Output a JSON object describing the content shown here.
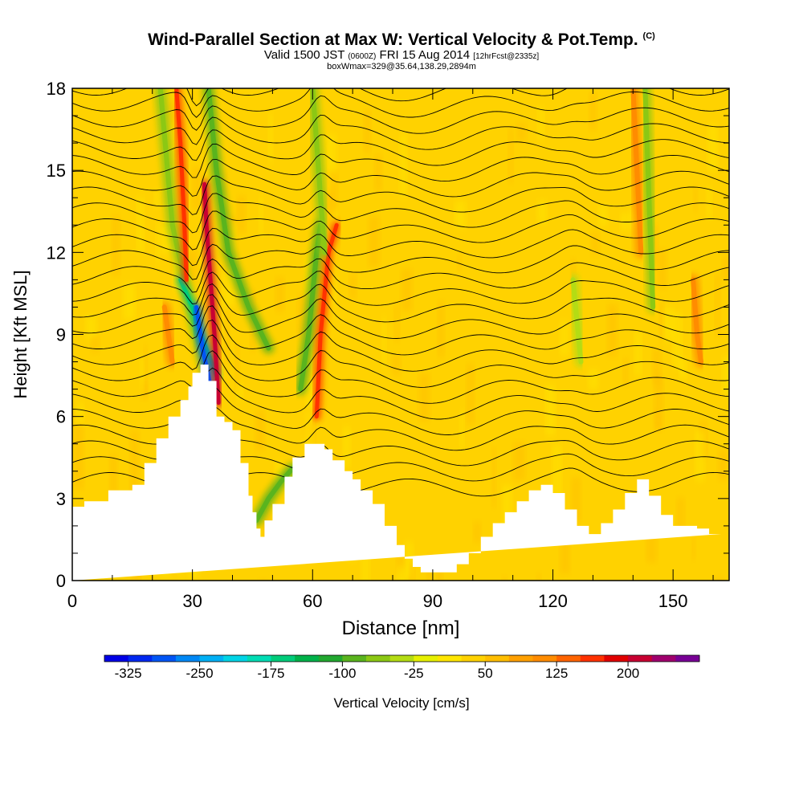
{
  "title": {
    "main": "Wind-Parallel Section at Max W: Vertical Velocity & Pot.Temp.",
    "mark": "(C)"
  },
  "subtitle": {
    "valid": "Valid 1500 JST",
    "utc": "(0600Z)",
    "date": "FRI 15 Aug 2014",
    "fcst": "[12hrFcst@2335z]"
  },
  "subtitle2": "boxWmax=329@35.64,138.29,2894m",
  "chart_data": {
    "type": "heatmap",
    "xlabel": "Distance [nm]",
    "ylabel": "Height [Kft MSL]",
    "xlim": [
      0,
      164
    ],
    "ylim": [
      0,
      18
    ],
    "xticks": [
      0,
      30,
      60,
      90,
      120,
      150
    ],
    "yticks": [
      0,
      3,
      6,
      9,
      12,
      15,
      18
    ],
    "background_w_cm_s": 25,
    "terrain": {
      "x": [
        0,
        3,
        3,
        9,
        9,
        15,
        15,
        18,
        18,
        21,
        21,
        24,
        24,
        27,
        27,
        29,
        29,
        30,
        30,
        32,
        32,
        34,
        34,
        36,
        36,
        38,
        38,
        40,
        40,
        42,
        42,
        44,
        44,
        45,
        45,
        46,
        46,
        47,
        47,
        48,
        48,
        50,
        50,
        53,
        53,
        55,
        55,
        58,
        58,
        61,
        61,
        63,
        63,
        65,
        65,
        68,
        68,
        70,
        70,
        72,
        72,
        75,
        75,
        78,
        78,
        81,
        81,
        83,
        83,
        85,
        85,
        87,
        87,
        90,
        90,
        96,
        96,
        99,
        99,
        102,
        102,
        105,
        105,
        108,
        108,
        111,
        111,
        114,
        114,
        117,
        117,
        120,
        120,
        123,
        123,
        126,
        126,
        129,
        129,
        132,
        132,
        135,
        135,
        138,
        138,
        141,
        141,
        144,
        144,
        147,
        147,
        150,
        150,
        153,
        153,
        156,
        156,
        159,
        159,
        162,
        162,
        164
      ],
      "h": [
        2.7,
        2.7,
        2.9,
        2.9,
        3.3,
        3.3,
        3.5,
        3.5,
        4.3,
        4.3,
        5.2,
        5.2,
        6,
        6,
        6.6,
        6.6,
        7.1,
        7.1,
        7.6,
        7.6,
        7.9,
        7.9,
        7.3,
        7.3,
        6,
        6,
        5.8,
        5.8,
        5.5,
        5.5,
        4.3,
        4.3,
        3.1,
        3.1,
        2.5,
        2.5,
        1.9,
        1.9,
        1.6,
        1.6,
        2.2,
        2.2,
        2.8,
        2.8,
        3.8,
        3.8,
        4.5,
        4.5,
        5,
        5,
        5,
        5,
        4.8,
        4.8,
        4.4,
        4.4,
        4,
        4,
        3.7,
        3.7,
        3.3,
        3.3,
        2.8,
        2.8,
        2,
        2,
        1.3,
        1.3,
        0.8,
        0.8,
        0.5,
        0.5,
        0.3,
        0.3,
        0.3,
        0.3,
        0.6,
        0.6,
        1,
        1,
        1.6,
        1.6,
        2.1,
        2.1,
        2.5,
        2.5,
        2.9,
        2.9,
        3.3,
        3.3,
        3.5,
        3.5,
        3.2,
        3.2,
        2.6,
        2.6,
        2,
        2,
        1.7,
        1.7,
        2.1,
        2.1,
        2.6,
        2.6,
        3.2,
        3.2,
        3.7,
        3.7,
        3.1,
        3.1,
        2.4,
        2.4,
        2,
        2,
        2,
        2,
        1.9,
        1.9,
        1.7,
        1.7
      ]
    },
    "features": [
      {
        "x": [
          22,
          25,
          28,
          31,
          33
        ],
        "y": [
          18,
          13,
          11,
          9,
          7.8
        ],
        "w": -75
      },
      {
        "x": [
          27,
          30,
          32,
          34,
          36
        ],
        "y": [
          11,
          10,
          9,
          8.3,
          7.5
        ],
        "w": -175
      },
      {
        "x": [
          31,
          32.5,
          34,
          35
        ],
        "y": [
          10,
          8.5,
          7.5,
          6.5
        ],
        "w": -300
      },
      {
        "x": [
          33,
          33.5,
          34.5,
          35.5,
          36.5
        ],
        "y": [
          14.5,
          13,
          11,
          9,
          6.5
        ],
        "w": 200
      },
      {
        "x": [
          26,
          27,
          28,
          28.5
        ],
        "y": [
          18,
          16,
          13,
          11
        ],
        "w": 150
      },
      {
        "x": [
          34,
          36,
          39,
          44,
          49
        ],
        "y": [
          18,
          15,
          12,
          10,
          8.5
        ],
        "w": -100
      },
      {
        "x": [
          57,
          59,
          61,
          62
        ],
        "y": [
          7,
          9,
          12,
          13
        ],
        "w": -100
      },
      {
        "x": [
          61,
          62,
          64,
          66
        ],
        "y": [
          6,
          9,
          12,
          13
        ],
        "w": 150
      },
      {
        "x": [
          60,
          61,
          62,
          63
        ],
        "y": [
          18,
          16,
          14,
          12
        ],
        "w": -75
      },
      {
        "x": [
          46,
          49,
          52,
          55
        ],
        "y": [
          2.2,
          3,
          3.6,
          4.1
        ],
        "w": -100
      },
      {
        "x": [
          143,
          144,
          145
        ],
        "y": [
          18,
          14,
          10
        ],
        "w": -75
      },
      {
        "x": [
          125,
          126,
          127
        ],
        "y": [
          11,
          9.5,
          8
        ],
        "w": -50
      },
      {
        "x": [
          140,
          141,
          142
        ],
        "y": [
          18,
          15,
          12
        ],
        "w": 100
      },
      {
        "x": [
          155,
          156,
          157
        ],
        "y": [
          11,
          9,
          8
        ],
        "w": 100
      },
      {
        "x": [
          23,
          24,
          25
        ],
        "y": [
          10,
          9,
          8
        ],
        "w": 100
      }
    ],
    "isentropes": 26,
    "colorbar": {
      "label": "Vertical Velocity [cm/s]",
      "min": -350,
      "max": 250,
      "step": 25,
      "ticks": [
        -325,
        -250,
        -175,
        -100,
        -25,
        50,
        125,
        200
      ],
      "colors": [
        "#0000e6",
        "#0028f0",
        "#0055f5",
        "#0088f5",
        "#00b0f5",
        "#00d4e6",
        "#00dcb4",
        "#00cc7a",
        "#00b24a",
        "#22a830",
        "#5ab41e",
        "#8cc814",
        "#b4dc14",
        "#e6f000",
        "#ffe600",
        "#ffd200",
        "#ffbe00",
        "#ffa000",
        "#ff8c00",
        "#ff6400",
        "#ff3200",
        "#e10000",
        "#c80032",
        "#a0006e",
        "#780096"
      ]
    }
  }
}
